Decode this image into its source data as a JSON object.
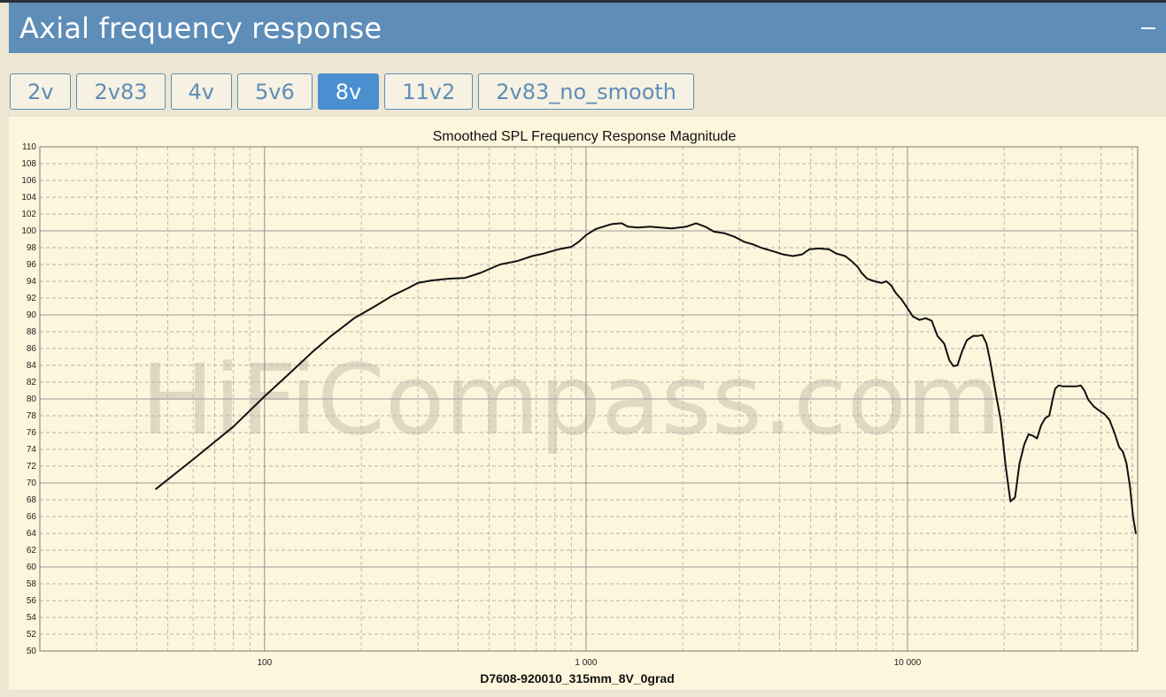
{
  "panel": {
    "title": "Axial frequency response"
  },
  "tabs": [
    {
      "label": "2v",
      "active": false
    },
    {
      "label": "2v83",
      "active": false
    },
    {
      "label": "4v",
      "active": false
    },
    {
      "label": "5v6",
      "active": false
    },
    {
      "label": "8v",
      "active": true
    },
    {
      "label": "11v2",
      "active": false
    },
    {
      "label": "2v83_no_smooth",
      "active": false
    }
  ],
  "watermark": "HiFiCompass.com",
  "colors": {
    "header": "#5e8db8",
    "active_tab": "#4a8fd0",
    "plot_bg": "#fdf6dc",
    "curve": "#111111"
  },
  "chart_data": {
    "type": "line",
    "title": "Smoothed SPL Frequency Response Magnitude",
    "xlabel": "D7608-920010_315mm_8V_0grad",
    "ylabel": "",
    "x_scale": "log",
    "xlim": [
      20,
      52000
    ],
    "ylim": [
      50,
      110
    ],
    "y_ticks": [
      50,
      52,
      54,
      56,
      58,
      60,
      62,
      64,
      66,
      68,
      70,
      72,
      74,
      76,
      78,
      80,
      82,
      84,
      86,
      88,
      90,
      92,
      94,
      96,
      98,
      100,
      102,
      104,
      106,
      108,
      110
    ],
    "x_tick_labels": [
      {
        "value": 100,
        "label": "100"
      },
      {
        "value": 1000,
        "label": "1 000"
      },
      {
        "value": 10000,
        "label": "10 000"
      }
    ],
    "grid": true,
    "series": [
      {
        "points": [
          [
            46,
            69.3
          ],
          [
            60,
            72.8
          ],
          [
            80,
            76.7
          ],
          [
            100,
            80.3
          ],
          [
            120,
            83.1
          ],
          [
            140,
            85.5
          ],
          [
            160,
            87.4
          ],
          [
            190,
            89.6
          ],
          [
            220,
            91.0
          ],
          [
            250,
            92.3
          ],
          [
            280,
            93.2
          ],
          [
            300,
            93.8
          ],
          [
            330,
            94.1
          ],
          [
            370,
            94.3
          ],
          [
            420,
            94.4
          ],
          [
            470,
            95.0
          ],
          [
            540,
            96.0
          ],
          [
            610,
            96.4
          ],
          [
            680,
            97.0
          ],
          [
            740,
            97.3
          ],
          [
            820,
            97.8
          ],
          [
            900,
            98.1
          ],
          [
            950,
            98.7
          ],
          [
            1000,
            99.5
          ],
          [
            1070,
            100.2
          ],
          [
            1130,
            100.5
          ],
          [
            1200,
            100.8
          ],
          [
            1290,
            100.9
          ],
          [
            1350,
            100.5
          ],
          [
            1450,
            100.4
          ],
          [
            1580,
            100.5
          ],
          [
            1700,
            100.4
          ],
          [
            1850,
            100.3
          ],
          [
            2050,
            100.5
          ],
          [
            2200,
            100.9
          ],
          [
            2350,
            100.5
          ],
          [
            2500,
            99.9
          ],
          [
            2700,
            99.7
          ],
          [
            2900,
            99.3
          ],
          [
            3100,
            98.7
          ],
          [
            3300,
            98.4
          ],
          [
            3500,
            98.0
          ],
          [
            3800,
            97.6
          ],
          [
            4100,
            97.2
          ],
          [
            4400,
            97.0
          ],
          [
            4700,
            97.2
          ],
          [
            4950,
            97.8
          ],
          [
            5300,
            97.9
          ],
          [
            5700,
            97.8
          ],
          [
            6000,
            97.3
          ],
          [
            6400,
            97.0
          ],
          [
            6700,
            96.4
          ],
          [
            7000,
            95.7
          ],
          [
            7200,
            95.0
          ],
          [
            7500,
            94.3
          ],
          [
            7900,
            94.0
          ],
          [
            8300,
            93.8
          ],
          [
            8600,
            94.0
          ],
          [
            8900,
            93.5
          ],
          [
            9200,
            92.6
          ],
          [
            9600,
            91.8
          ],
          [
            10000,
            90.8
          ],
          [
            10400,
            89.8
          ],
          [
            10900,
            89.4
          ],
          [
            11400,
            89.6
          ],
          [
            11900,
            89.3
          ],
          [
            12400,
            87.5
          ],
          [
            13000,
            86.6
          ],
          [
            13500,
            84.6
          ],
          [
            13900,
            83.9
          ],
          [
            14300,
            84.0
          ],
          [
            14800,
            85.7
          ],
          [
            15300,
            87.0
          ],
          [
            16000,
            87.5
          ],
          [
            16500,
            87.5
          ],
          [
            17100,
            87.6
          ],
          [
            17600,
            86.6
          ],
          [
            18100,
            84.4
          ],
          [
            18700,
            81.3
          ],
          [
            19500,
            77.5
          ],
          [
            20200,
            72.0
          ],
          [
            20900,
            67.8
          ],
          [
            21600,
            68.3
          ],
          [
            22300,
            72.3
          ],
          [
            23100,
            74.6
          ],
          [
            23800,
            75.8
          ],
          [
            24600,
            75.6
          ],
          [
            25300,
            75.3
          ],
          [
            26000,
            76.8
          ],
          [
            26800,
            77.7
          ],
          [
            27600,
            78.0
          ],
          [
            28300,
            80.0
          ],
          [
            28800,
            81.2
          ],
          [
            29500,
            81.6
          ],
          [
            30500,
            81.5
          ],
          [
            32000,
            81.5
          ],
          [
            33500,
            81.5
          ],
          [
            34600,
            81.6
          ],
          [
            35500,
            81.0
          ],
          [
            36500,
            79.9
          ],
          [
            38000,
            79.1
          ],
          [
            39500,
            78.6
          ],
          [
            41000,
            78.2
          ],
          [
            42500,
            77.5
          ],
          [
            44000,
            76.0
          ],
          [
            45500,
            74.3
          ],
          [
            46800,
            73.7
          ],
          [
            48000,
            72.3
          ],
          [
            49200,
            69.6
          ],
          [
            50300,
            66.0
          ],
          [
            51300,
            64.0
          ]
        ]
      }
    ]
  }
}
